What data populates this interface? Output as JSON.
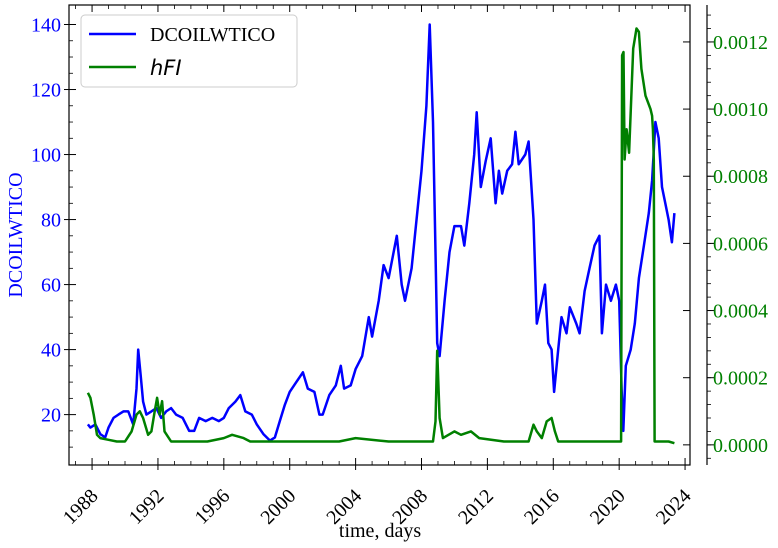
{
  "chart_data": {
    "type": "line",
    "xlabel": "time, days",
    "x_ticks": [
      "1988",
      "1992",
      "1996",
      "2000",
      "2004",
      "2008",
      "2012",
      "2016",
      "2020",
      "2024"
    ],
    "xlim": [
      1986.6,
      2024.3
    ],
    "y_left": {
      "label": "DCOILWTICO",
      "ylim": [
        4.5,
        146
      ],
      "ticks": [
        "20",
        "40",
        "60",
        "80",
        "100",
        "120",
        "140"
      ],
      "color": "#0000ff"
    },
    "y_right": {
      "ylim": [
        -6e-05,
        0.00131
      ],
      "ticks": [
        "0.0000",
        "0.0002",
        "0.0004",
        "0.0006",
        "0.0008",
        "0.0010",
        "0.0012"
      ],
      "color": "#008000"
    },
    "legend": {
      "placement": "top-left"
    },
    "series": [
      {
        "name": "DCOILWTICO",
        "axis": "left",
        "color": "#0000ff",
        "points": [
          [
            1987.75,
            17
          ],
          [
            1987.9,
            16
          ],
          [
            1988.2,
            17
          ],
          [
            1988.5,
            14
          ],
          [
            1988.8,
            13
          ],
          [
            1989.0,
            16
          ],
          [
            1989.3,
            19
          ],
          [
            1989.6,
            20
          ],
          [
            1989.9,
            21
          ],
          [
            1990.2,
            21
          ],
          [
            1990.5,
            17
          ],
          [
            1990.7,
            28
          ],
          [
            1990.8,
            40
          ],
          [
            1990.95,
            32
          ],
          [
            1991.1,
            24
          ],
          [
            1991.3,
            20
          ],
          [
            1991.6,
            21
          ],
          [
            1991.9,
            22
          ],
          [
            1992.2,
            19
          ],
          [
            1992.5,
            21
          ],
          [
            1992.8,
            22
          ],
          [
            1993.1,
            20
          ],
          [
            1993.5,
            19
          ],
          [
            1993.9,
            15
          ],
          [
            1994.2,
            15
          ],
          [
            1994.5,
            19
          ],
          [
            1994.9,
            18
          ],
          [
            1995.3,
            19
          ],
          [
            1995.7,
            18
          ],
          [
            1996.0,
            19
          ],
          [
            1996.3,
            22
          ],
          [
            1996.7,
            24
          ],
          [
            1997.0,
            26
          ],
          [
            1997.3,
            21
          ],
          [
            1997.7,
            20
          ],
          [
            1998.0,
            17
          ],
          [
            1998.4,
            14
          ],
          [
            1998.8,
            12
          ],
          [
            1999.1,
            13
          ],
          [
            1999.4,
            18
          ],
          [
            1999.7,
            23
          ],
          [
            2000.0,
            27
          ],
          [
            2000.4,
            30
          ],
          [
            2000.8,
            33
          ],
          [
            2001.1,
            28
          ],
          [
            2001.5,
            27
          ],
          [
            2001.8,
            20
          ],
          [
            2002.0,
            20
          ],
          [
            2002.4,
            26
          ],
          [
            2002.8,
            29
          ],
          [
            2003.1,
            35
          ],
          [
            2003.3,
            28
          ],
          [
            2003.7,
            29
          ],
          [
            2004.0,
            34
          ],
          [
            2004.4,
            38
          ],
          [
            2004.8,
            50
          ],
          [
            2005.0,
            44
          ],
          [
            2005.4,
            55
          ],
          [
            2005.7,
            66
          ],
          [
            2006.0,
            62
          ],
          [
            2006.5,
            75
          ],
          [
            2006.8,
            60
          ],
          [
            2007.0,
            55
          ],
          [
            2007.4,
            65
          ],
          [
            2007.8,
            85
          ],
          [
            2008.0,
            95
          ],
          [
            2008.3,
            115
          ],
          [
            2008.5,
            140
          ],
          [
            2008.7,
            110
          ],
          [
            2008.85,
            70
          ],
          [
            2008.95,
            42
          ],
          [
            2009.1,
            38
          ],
          [
            2009.4,
            55
          ],
          [
            2009.7,
            70
          ],
          [
            2010.0,
            78
          ],
          [
            2010.4,
            78
          ],
          [
            2010.6,
            72
          ],
          [
            2010.9,
            85
          ],
          [
            2011.2,
            100
          ],
          [
            2011.35,
            113
          ],
          [
            2011.6,
            90
          ],
          [
            2011.9,
            98
          ],
          [
            2012.2,
            105
          ],
          [
            2012.5,
            85
          ],
          [
            2012.7,
            95
          ],
          [
            2012.9,
            88
          ],
          [
            2013.2,
            95
          ],
          [
            2013.5,
            97
          ],
          [
            2013.7,
            107
          ],
          [
            2013.9,
            97
          ],
          [
            2014.3,
            100
          ],
          [
            2014.5,
            104
          ],
          [
            2014.8,
            80
          ],
          [
            2015.0,
            48
          ],
          [
            2015.3,
            55
          ],
          [
            2015.5,
            60
          ],
          [
            2015.7,
            42
          ],
          [
            2015.9,
            40
          ],
          [
            2016.05,
            27
          ],
          [
            2016.3,
            40
          ],
          [
            2016.5,
            50
          ],
          [
            2016.8,
            45
          ],
          [
            2017.0,
            53
          ],
          [
            2017.4,
            48
          ],
          [
            2017.6,
            45
          ],
          [
            2017.9,
            58
          ],
          [
            2018.2,
            65
          ],
          [
            2018.5,
            72
          ],
          [
            2018.8,
            75
          ],
          [
            2018.95,
            45
          ],
          [
            2019.2,
            60
          ],
          [
            2019.5,
            55
          ],
          [
            2019.8,
            60
          ],
          [
            2020.0,
            55
          ],
          [
            2020.15,
            28
          ],
          [
            2020.25,
            15
          ],
          [
            2020.4,
            35
          ],
          [
            2020.7,
            40
          ],
          [
            2020.95,
            48
          ],
          [
            2021.2,
            62
          ],
          [
            2021.5,
            72
          ],
          [
            2021.8,
            82
          ],
          [
            2022.0,
            92
          ],
          [
            2022.2,
            110
          ],
          [
            2022.4,
            105
          ],
          [
            2022.6,
            90
          ],
          [
            2022.8,
            85
          ],
          [
            2023.0,
            80
          ],
          [
            2023.2,
            73
          ],
          [
            2023.35,
            82
          ]
        ]
      },
      {
        "name": "hFI",
        "axis": "right",
        "color": "#008000",
        "points": [
          [
            1987.75,
            0.000155
          ],
          [
            1987.9,
            0.00014
          ],
          [
            1988.1,
            9e-05
          ],
          [
            1988.3,
            3e-05
          ],
          [
            1988.5,
            2e-05
          ],
          [
            1989.0,
            1.5e-05
          ],
          [
            1989.5,
            1e-05
          ],
          [
            1990.0,
            1e-05
          ],
          [
            1990.4,
            4e-05
          ],
          [
            1990.7,
            9e-05
          ],
          [
            1990.9,
            0.0001
          ],
          [
            1991.1,
            8e-05
          ],
          [
            1991.4,
            3e-05
          ],
          [
            1991.6,
            4e-05
          ],
          [
            1991.8,
            0.0001
          ],
          [
            1991.95,
            0.00014
          ],
          [
            1992.1,
            9e-05
          ],
          [
            1992.25,
            0.00013
          ],
          [
            1992.4,
            4e-05
          ],
          [
            1992.8,
            1e-05
          ],
          [
            1994.0,
            1e-05
          ],
          [
            1995.0,
            1e-05
          ],
          [
            1996.0,
            2e-05
          ],
          [
            1996.5,
            3e-05
          ],
          [
            1997.2,
            2e-05
          ],
          [
            1997.6,
            1e-05
          ],
          [
            1999.0,
            1e-05
          ],
          [
            2001.0,
            1e-05
          ],
          [
            2003.0,
            1e-05
          ],
          [
            2004.0,
            2e-05
          ],
          [
            2006.0,
            1e-05
          ],
          [
            2008.0,
            1e-05
          ],
          [
            2008.7,
            1e-05
          ],
          [
            2008.85,
            7e-05
          ],
          [
            2008.95,
            0.00028
          ],
          [
            2009.1,
            8e-05
          ],
          [
            2009.3,
            2e-05
          ],
          [
            2010.0,
            4e-05
          ],
          [
            2010.4,
            3e-05
          ],
          [
            2011.0,
            4e-05
          ],
          [
            2011.5,
            2e-05
          ],
          [
            2013.0,
            1e-05
          ],
          [
            2014.5,
            1e-05
          ],
          [
            2014.8,
            6e-05
          ],
          [
            2015.0,
            4e-05
          ],
          [
            2015.3,
            2e-05
          ],
          [
            2015.6,
            7e-05
          ],
          [
            2015.9,
            8e-05
          ],
          [
            2016.1,
            4e-05
          ],
          [
            2016.3,
            1e-05
          ],
          [
            2018.0,
            1e-05
          ],
          [
            2019.0,
            1e-05
          ],
          [
            2020.0,
            1e-05
          ],
          [
            2020.12,
            1e-05
          ],
          [
            2020.18,
            0.00116
          ],
          [
            2020.26,
            0.00117
          ],
          [
            2020.33,
            0.00085
          ],
          [
            2020.45,
            0.00094
          ],
          [
            2020.6,
            0.00087
          ],
          [
            2020.85,
            0.00118
          ],
          [
            2021.05,
            0.00124
          ],
          [
            2021.2,
            0.00123
          ],
          [
            2021.35,
            0.00112
          ],
          [
            2021.6,
            0.00104
          ],
          [
            2021.9,
            0.001
          ],
          [
            2022.0,
            0.00098
          ],
          [
            2022.05,
            0.00094
          ],
          [
            2022.1,
            0.00085
          ],
          [
            2022.15,
            1e-05
          ],
          [
            2022.5,
            1e-05
          ],
          [
            2023.0,
            1e-05
          ],
          [
            2023.35,
            5e-06
          ]
        ]
      }
    ]
  }
}
